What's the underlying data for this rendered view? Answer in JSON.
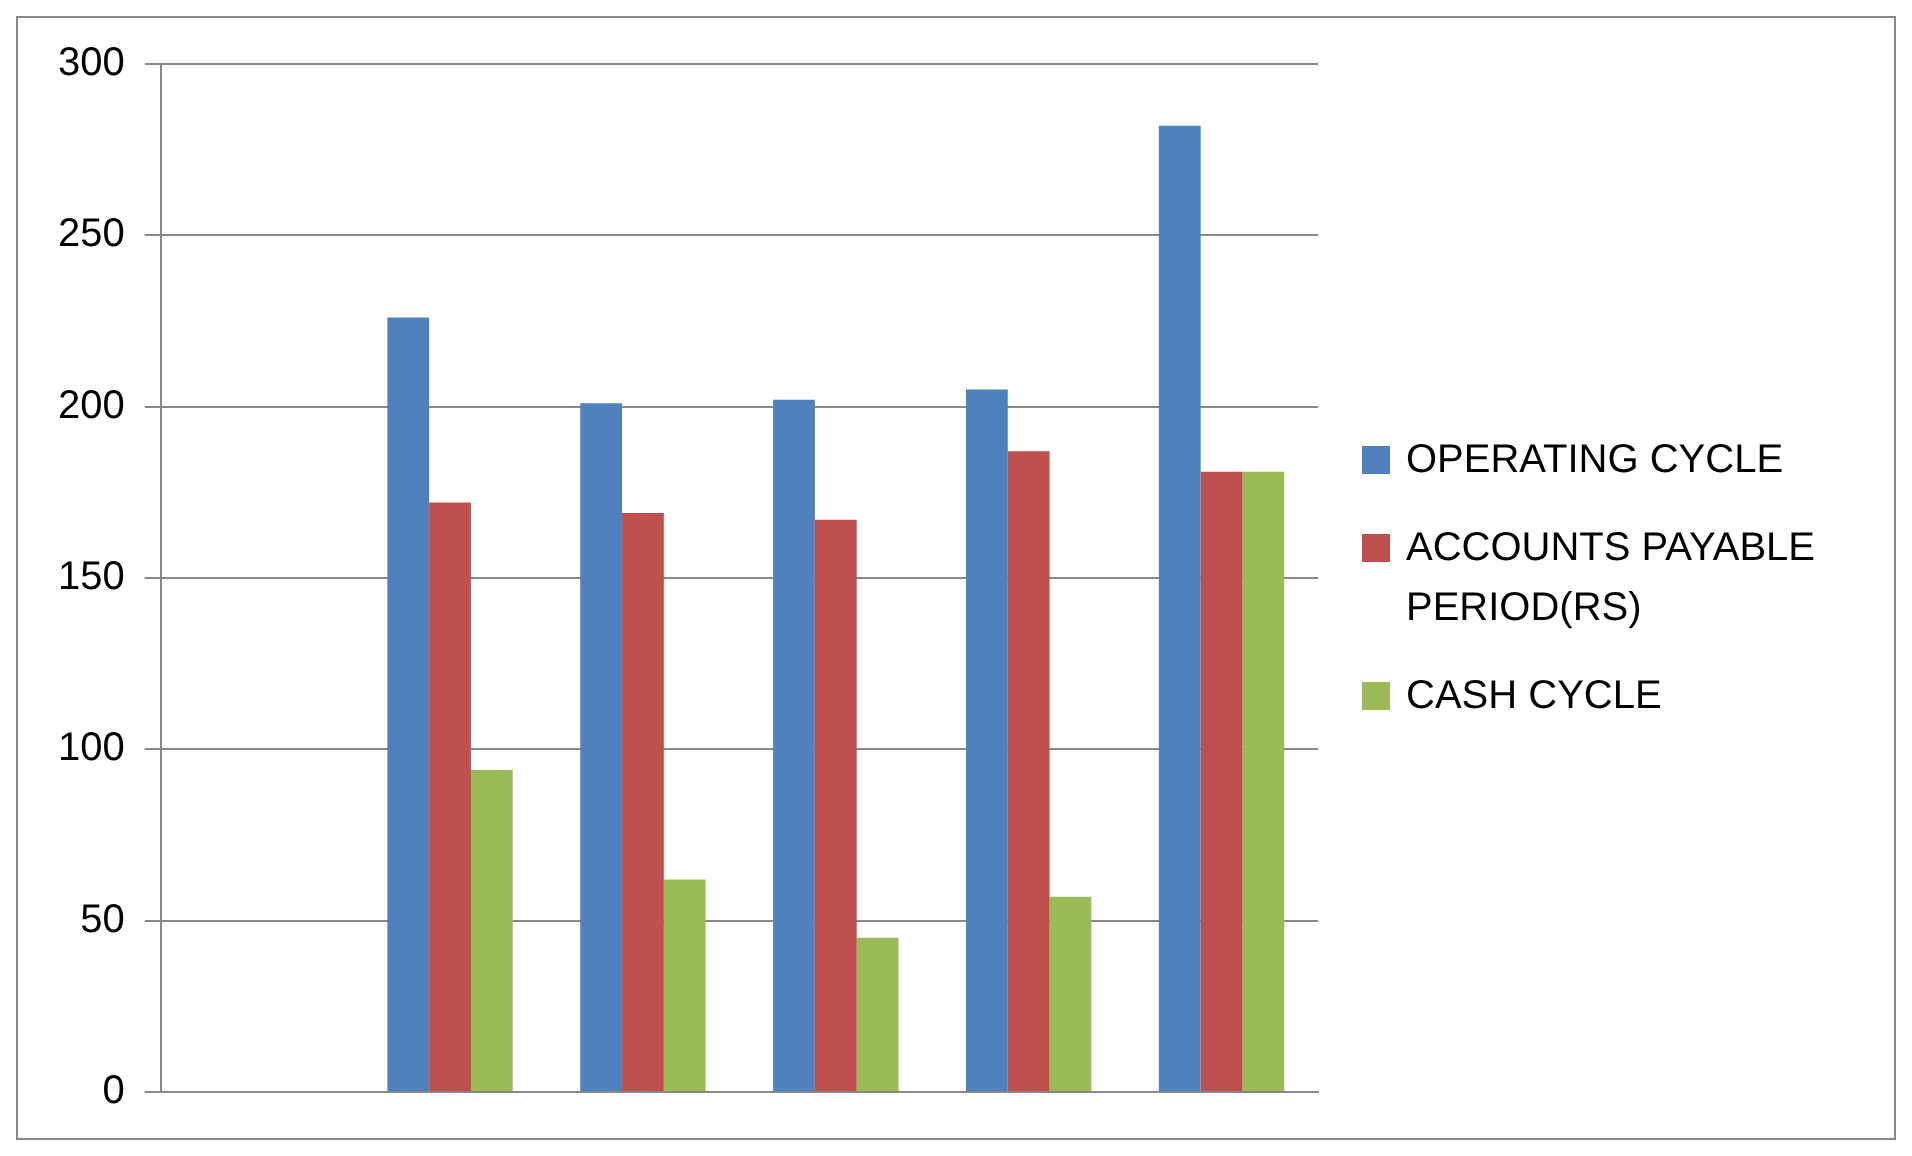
{
  "chart_data": {
    "type": "bar",
    "categories": [
      null,
      null,
      null,
      null,
      null,
      null
    ],
    "series": [
      {
        "name": "OPERATING CYCLE",
        "color": "#4f81bd",
        "values": [
          null,
          226,
          201,
          202,
          205,
          282
        ]
      },
      {
        "name": "ACCOUNTS PAYABLE PERIOD(RS)",
        "color": "#c0504d",
        "values": [
          null,
          172,
          169,
          167,
          187,
          181
        ]
      },
      {
        "name": "CASH CYCLE",
        "color": "#9bbb59",
        "values": [
          null,
          94,
          62,
          45,
          57,
          181
        ]
      }
    ],
    "ylim": [
      0,
      300
    ],
    "yticks": [
      0,
      50,
      100,
      150,
      200,
      250,
      300
    ],
    "grid": "y",
    "legend": "right",
    "tick_labels": "y"
  }
}
